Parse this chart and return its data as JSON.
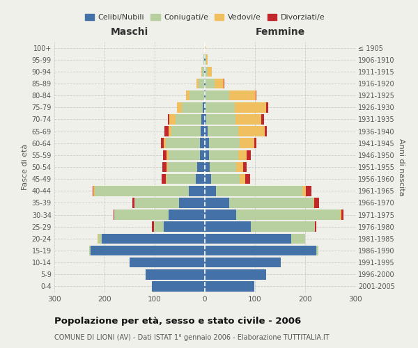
{
  "age_groups": [
    "0-4",
    "5-9",
    "10-14",
    "15-19",
    "20-24",
    "25-29",
    "30-34",
    "35-39",
    "40-44",
    "45-49",
    "50-54",
    "55-59",
    "60-64",
    "65-69",
    "70-74",
    "75-79",
    "80-84",
    "85-89",
    "90-94",
    "95-99",
    "100+"
  ],
  "birth_years": [
    "2001-2005",
    "1996-2000",
    "1991-1995",
    "1986-1990",
    "1981-1985",
    "1976-1980",
    "1971-1975",
    "1966-1970",
    "1961-1965",
    "1956-1960",
    "1951-1955",
    "1946-1950",
    "1941-1945",
    "1936-1940",
    "1931-1935",
    "1926-1930",
    "1921-1925",
    "1916-1920",
    "1911-1915",
    "1906-1910",
    "≤ 1905"
  ],
  "maschi": {
    "celibi": [
      105,
      118,
      150,
      228,
      205,
      82,
      72,
      52,
      32,
      18,
      15,
      10,
      10,
      8,
      7,
      4,
      2,
      1,
      1,
      1,
      0
    ],
    "coniugati": [
      0,
      0,
      0,
      2,
      8,
      20,
      108,
      88,
      188,
      58,
      58,
      62,
      68,
      58,
      52,
      42,
      28,
      12,
      4,
      2,
      0
    ],
    "vedovi": [
      0,
      0,
      0,
      0,
      1,
      0,
      0,
      0,
      2,
      2,
      4,
      4,
      4,
      6,
      12,
      10,
      8,
      4,
      2,
      0,
      0
    ],
    "divorziati": [
      0,
      0,
      0,
      0,
      0,
      3,
      2,
      5,
      2,
      8,
      8,
      8,
      5,
      8,
      2,
      0,
      0,
      0,
      0,
      0,
      0
    ]
  },
  "femmine": {
    "nubili": [
      98,
      122,
      152,
      222,
      172,
      92,
      62,
      48,
      22,
      12,
      10,
      8,
      8,
      5,
      3,
      2,
      1,
      2,
      1,
      1,
      0
    ],
    "coniugate": [
      0,
      0,
      0,
      5,
      28,
      128,
      208,
      168,
      172,
      58,
      52,
      58,
      62,
      62,
      58,
      58,
      48,
      18,
      5,
      2,
      0
    ],
    "vedove": [
      0,
      0,
      0,
      0,
      0,
      0,
      2,
      2,
      8,
      10,
      14,
      18,
      28,
      52,
      52,
      62,
      52,
      18,
      8,
      2,
      2
    ],
    "divorziate": [
      0,
      0,
      0,
      0,
      0,
      2,
      4,
      10,
      10,
      10,
      8,
      8,
      5,
      5,
      5,
      4,
      2,
      1,
      0,
      0,
      0
    ]
  },
  "colors": {
    "celibi": "#4472a8",
    "coniugati": "#b8cfa0",
    "vedovi": "#f0c060",
    "divorziati": "#c0282c"
  },
  "title": "Popolazione per età, sesso e stato civile - 2006",
  "subtitle": "COMUNE DI LIONI (AV) - Dati ISTAT 1° gennaio 2006 - Elaborazione TUTTITALIA.IT",
  "xlabel_left": "Maschi",
  "xlabel_right": "Femmine",
  "ylabel_left": "Fasce di età",
  "ylabel_right": "Anni di nascita",
  "legend_labels": [
    "Celibi/Nubili",
    "Coniugati/e",
    "Vedovi/e",
    "Divorziati/e"
  ],
  "xlim": 300,
  "bg_color": "#f0f0eb",
  "plot_bg": "#f0f0eb",
  "grid_color": "#dddddd",
  "center_line_color": "#ffffff"
}
